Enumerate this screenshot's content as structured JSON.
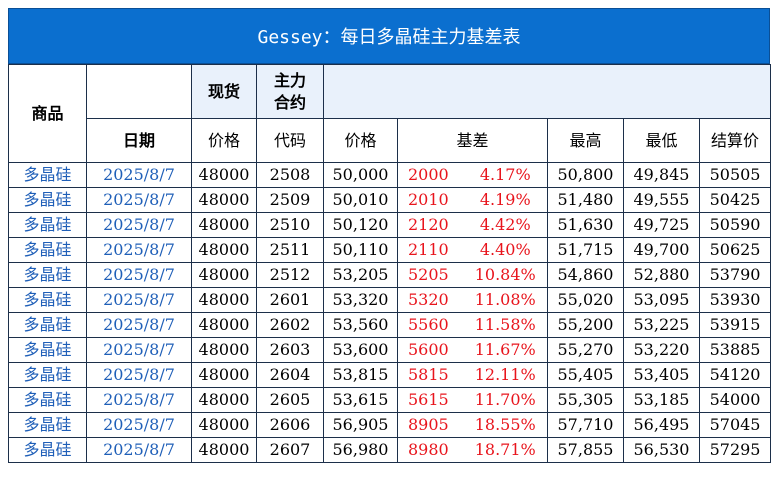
{
  "title": "Gessey：每日多晶硅主力基差表",
  "header": {
    "product": "商品",
    "date": "日期",
    "spot": "现货",
    "spot_sub": "价格",
    "main_contract": "主力\n合约",
    "code": "代码",
    "price": "价格",
    "basis": "基差",
    "high": "最高",
    "low": "最低",
    "settle": "结算价"
  },
  "rows": [
    {
      "product": "多晶硅",
      "date": "2025/8/7",
      "spot": "48000",
      "code": "2508",
      "price": "50,000",
      "basis": "2000",
      "basis_pct": "4.17%",
      "high": "50,800",
      "low": "49,845",
      "settle": "50505"
    },
    {
      "product": "多晶硅",
      "date": "2025/8/7",
      "spot": "48000",
      "code": "2509",
      "price": "50,010",
      "basis": "2010",
      "basis_pct": "4.19%",
      "high": "51,480",
      "low": "49,555",
      "settle": "50425"
    },
    {
      "product": "多晶硅",
      "date": "2025/8/7",
      "spot": "48000",
      "code": "2510",
      "price": "50,120",
      "basis": "2120",
      "basis_pct": "4.42%",
      "high": "51,630",
      "low": "49,725",
      "settle": "50590"
    },
    {
      "product": "多晶硅",
      "date": "2025/8/7",
      "spot": "48000",
      "code": "2511",
      "price": "50,110",
      "basis": "2110",
      "basis_pct": "4.40%",
      "high": "51,715",
      "low": "49,700",
      "settle": "50625"
    },
    {
      "product": "多晶硅",
      "date": "2025/8/7",
      "spot": "48000",
      "code": "2512",
      "price": "53,205",
      "basis": "5205",
      "basis_pct": "10.84%",
      "high": "54,860",
      "low": "52,880",
      "settle": "53790"
    },
    {
      "product": "多晶硅",
      "date": "2025/8/7",
      "spot": "48000",
      "code": "2601",
      "price": "53,320",
      "basis": "5320",
      "basis_pct": "11.08%",
      "high": "55,020",
      "low": "53,095",
      "settle": "53930"
    },
    {
      "product": "多晶硅",
      "date": "2025/8/7",
      "spot": "48000",
      "code": "2602",
      "price": "53,560",
      "basis": "5560",
      "basis_pct": "11.58%",
      "high": "55,200",
      "low": "53,225",
      "settle": "53915"
    },
    {
      "product": "多晶硅",
      "date": "2025/8/7",
      "spot": "48000",
      "code": "2603",
      "price": "53,600",
      "basis": "5600",
      "basis_pct": "11.67%",
      "high": "55,270",
      "low": "53,220",
      "settle": "53885"
    },
    {
      "product": "多晶硅",
      "date": "2025/8/7",
      "spot": "48000",
      "code": "2604",
      "price": "53,815",
      "basis": "5815",
      "basis_pct": "12.11%",
      "high": "55,405",
      "low": "53,405",
      "settle": "54120"
    },
    {
      "product": "多晶硅",
      "date": "2025/8/7",
      "spot": "48000",
      "code": "2605",
      "price": "53,615",
      "basis": "5615",
      "basis_pct": "11.70%",
      "high": "55,305",
      "low": "53,185",
      "settle": "54000"
    },
    {
      "product": "多晶硅",
      "date": "2025/8/7",
      "spot": "48000",
      "code": "2606",
      "price": "56,905",
      "basis": "8905",
      "basis_pct": "18.55%",
      "high": "57,710",
      "low": "56,495",
      "settle": "57045"
    },
    {
      "product": "多晶硅",
      "date": "2025/8/7",
      "spot": "48000",
      "code": "2607",
      "price": "56,980",
      "basis": "8980",
      "basis_pct": "18.71%",
      "high": "57,855",
      "low": "56,530",
      "settle": "57295"
    }
  ],
  "colors": {
    "title_bg": "#0b6fcf",
    "header_light": "#e9f1fb",
    "link_blue": "#1f5fb8",
    "basis_red": "#e8141c",
    "border": "#1c2f4a"
  }
}
